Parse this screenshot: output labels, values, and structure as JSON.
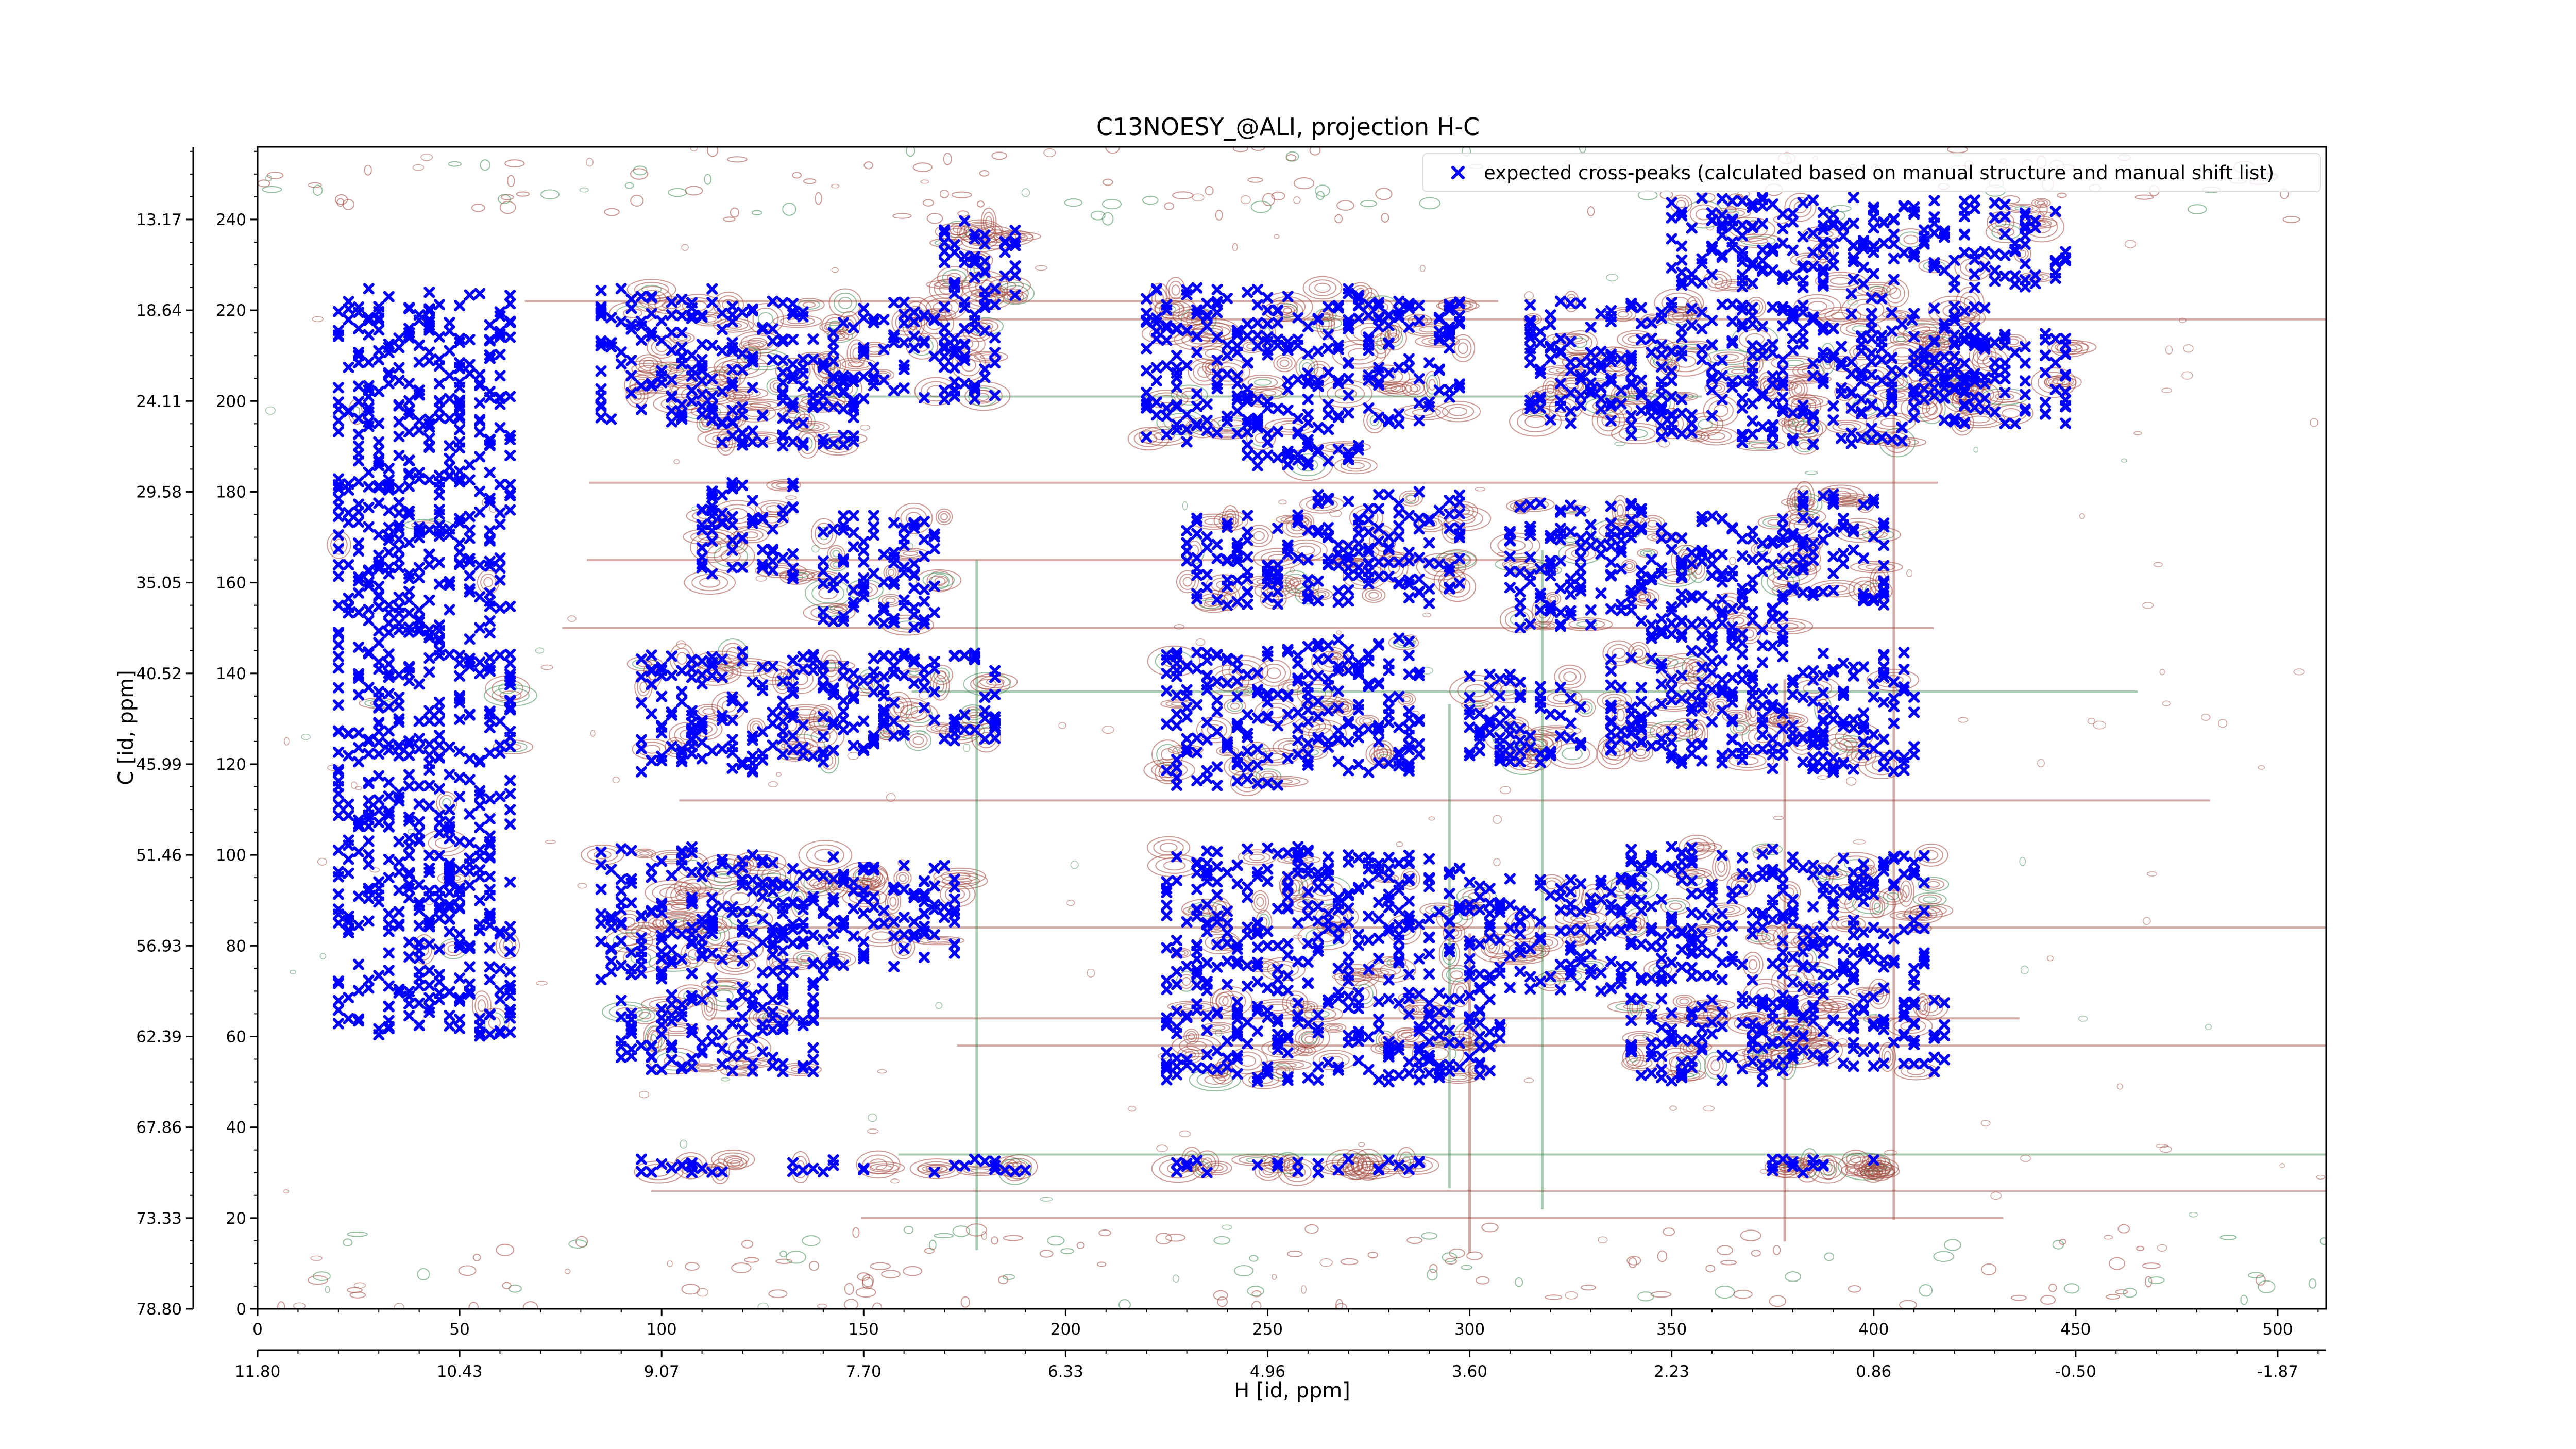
{
  "chart_data": {
    "type": "scatter",
    "title": "C13NOESY_@ALI, projection H-C",
    "xlabel": "H [id, ppm]",
    "ylabel": "C [id, ppm]",
    "xlim": [
      0,
      512
    ],
    "ylim": [
      0,
      256
    ],
    "x_ticks": [
      "0",
      "50",
      "100",
      "150",
      "200",
      "250",
      "300",
      "350",
      "400",
      "450",
      "500"
    ],
    "y_ticks": [
      "0",
      "20",
      "40",
      "60",
      "80",
      "100",
      "120",
      "140",
      "160",
      "180",
      "200",
      "220",
      "240"
    ],
    "x_secondary_ticks": [
      "11.80",
      "10.43",
      "9.07",
      "7.70",
      "6.33",
      "4.96",
      "3.60",
      "2.23",
      "0.86",
      "-0.50",
      "-1.87"
    ],
    "y_secondary_ticks": [
      "78.80",
      "73.33",
      "67.86",
      "62.39",
      "56.93",
      "51.46",
      "45.99",
      "40.52",
      "35.05",
      "29.58",
      "24.11",
      "18.64",
      "13.17"
    ],
    "legend": {
      "location": "top-right",
      "entries": [
        {
          "label": "expected cross-peaks (calculated based on manual structure and manual shift list)",
          "color": "#0000ff",
          "marker": "x"
        }
      ]
    },
    "colors": {
      "peaks": "#0000ff",
      "contour_positive": "#a0453a",
      "contour_negative": "#3e8a52"
    },
    "grid": false,
    "peak_clusters": [
      {
        "x": [
          85,
          115
        ],
        "y": [
          195,
          225
        ]
      },
      {
        "x": [
          115,
          135
        ],
        "y": [
          190,
          222
        ]
      },
      {
        "x": [
          135,
          150
        ],
        "y": [
          190,
          222
        ]
      },
      {
        "x": [
          150,
          185
        ],
        "y": [
          200,
          222
        ]
      },
      {
        "x": [
          220,
          245
        ],
        "y": [
          190,
          225
        ]
      },
      {
        "x": [
          245,
          275
        ],
        "y": [
          185,
          225
        ]
      },
      {
        "x": [
          275,
          300
        ],
        "y": [
          195,
          222
        ]
      },
      {
        "x": [
          315,
          340
        ],
        "y": [
          195,
          222
        ]
      },
      {
        "x": [
          340,
          365
        ],
        "y": [
          192,
          222
        ]
      },
      {
        "x": [
          365,
          392
        ],
        "y": [
          190,
          222
        ]
      },
      {
        "x": [
          392,
          410
        ],
        "y": [
          190,
          225
        ]
      },
      {
        "x": [
          410,
          430
        ],
        "y": [
          200,
          222
        ]
      },
      {
        "x": [
          110,
          135
        ],
        "y": [
          160,
          182
        ]
      },
      {
        "x": [
          140,
          170
        ],
        "y": [
          150,
          175
        ]
      },
      {
        "x": [
          230,
          260
        ],
        "y": [
          155,
          175
        ]
      },
      {
        "x": [
          260,
          300
        ],
        "y": [
          155,
          180
        ]
      },
      {
        "x": [
          310,
          345
        ],
        "y": [
          150,
          178
        ]
      },
      {
        "x": [
          345,
          380
        ],
        "y": [
          145,
          175
        ]
      },
      {
        "x": [
          380,
          405
        ],
        "y": [
          155,
          180
        ]
      },
      {
        "x": [
          95,
          125
        ],
        "y": [
          118,
          145
        ]
      },
      {
        "x": [
          125,
          155
        ],
        "y": [
          120,
          145
        ]
      },
      {
        "x": [
          155,
          185
        ],
        "y": [
          125,
          145
        ]
      },
      {
        "x": [
          225,
          255
        ],
        "y": [
          115,
          145
        ]
      },
      {
        "x": [
          255,
          290
        ],
        "y": [
          118,
          148
        ]
      },
      {
        "x": [
          300,
          330
        ],
        "y": [
          120,
          140
        ]
      },
      {
        "x": [
          335,
          370
        ],
        "y": [
          120,
          145
        ]
      },
      {
        "x": [
          370,
          412
        ],
        "y": [
          118,
          145
        ]
      },
      {
        "x": [
          85,
          115
        ],
        "y": [
          72,
          102
        ]
      },
      {
        "x": [
          115,
          145
        ],
        "y": [
          70,
          100
        ]
      },
      {
        "x": [
          145,
          175
        ],
        "y": [
          75,
          98
        ]
      },
      {
        "x": [
          225,
          265
        ],
        "y": [
          70,
          102
        ]
      },
      {
        "x": [
          265,
          300
        ],
        "y": [
          72,
          100
        ]
      },
      {
        "x": [
          300,
          340
        ],
        "y": [
          70,
          95
        ]
      },
      {
        "x": [
          340,
          380
        ],
        "y": [
          72,
          102
        ]
      },
      {
        "x": [
          380,
          415
        ],
        "y": [
          70,
          100
        ]
      },
      {
        "x": [
          90,
          140
        ],
        "y": [
          52,
          70
        ]
      },
      {
        "x": [
          225,
          265
        ],
        "y": [
          50,
          68
        ]
      },
      {
        "x": [
          265,
          310
        ],
        "y": [
          50,
          70
        ]
      },
      {
        "x": [
          340,
          375
        ],
        "y": [
          50,
          70
        ]
      },
      {
        "x": [
          375,
          420
        ],
        "y": [
          52,
          70
        ]
      },
      {
        "x": [
          170,
          190
        ],
        "y": [
          222,
          240
        ]
      },
      {
        "x": [
          350,
          450
        ],
        "y": [
          225,
          245
        ]
      },
      {
        "x": [
          410,
          450
        ],
        "y": [
          195,
          215
        ]
      },
      {
        "x": [
          20,
          65
        ],
        "y": [
          60,
          225
        ]
      },
      {
        "x": [
          95,
          195
        ],
        "y": [
          30,
          33
        ]
      },
      {
        "x": [
          225,
          290
        ],
        "y": [
          30,
          33
        ]
      },
      {
        "x": [
          375,
          410
        ],
        "y": [
          30,
          33
        ]
      }
    ]
  }
}
